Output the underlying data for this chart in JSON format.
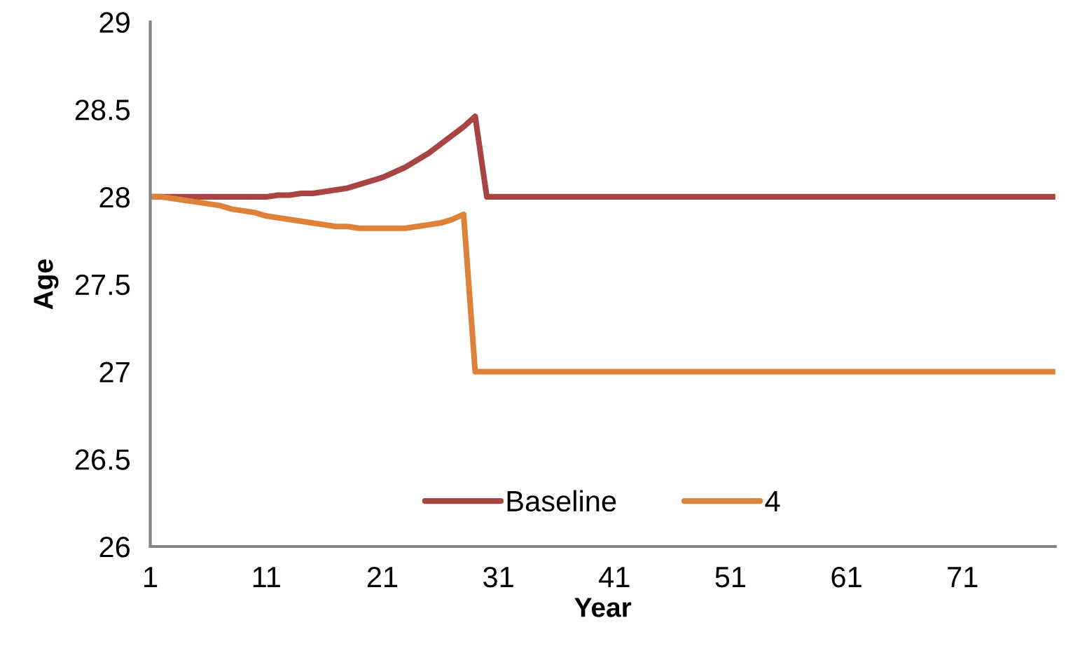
{
  "chart_data": {
    "type": "line",
    "xlabel": "Year",
    "ylabel": "Age",
    "x": [
      1,
      2,
      3,
      4,
      5,
      6,
      7,
      8,
      9,
      10,
      11,
      12,
      13,
      14,
      15,
      16,
      17,
      18,
      19,
      20,
      21,
      22,
      23,
      24,
      25,
      26,
      27,
      28,
      29,
      30,
      31,
      32,
      33,
      34,
      35,
      36,
      37,
      38,
      39,
      40,
      41,
      42,
      43,
      44,
      45,
      46,
      47,
      48,
      49,
      50,
      51,
      52,
      53,
      54,
      55,
      56,
      57,
      58,
      59,
      60,
      61,
      62,
      63,
      64,
      65,
      66,
      67,
      68,
      69,
      70,
      71,
      72,
      73,
      74,
      75,
      76,
      77,
      78,
      79
    ],
    "series": [
      {
        "name": "Baseline",
        "color": "#a84442",
        "values": [
          28,
          28,
          28,
          28,
          28,
          28,
          28,
          28,
          28,
          28,
          28,
          28.01,
          28.01,
          28.02,
          28.02,
          28.03,
          28.04,
          28.05,
          28.07,
          28.09,
          28.11,
          28.14,
          28.17,
          28.21,
          28.25,
          28.3,
          28.35,
          28.4,
          28.46,
          28,
          28,
          28,
          28,
          28,
          28,
          28,
          28,
          28,
          28,
          28,
          28,
          28,
          28,
          28,
          28,
          28,
          28,
          28,
          28,
          28,
          28,
          28,
          28,
          28,
          28,
          28,
          28,
          28,
          28,
          28,
          28,
          28,
          28,
          28,
          28,
          28,
          28,
          28,
          28,
          28,
          28,
          28,
          28,
          28,
          28,
          28,
          28,
          28,
          28
        ]
      },
      {
        "name": "4",
        "color": "#de8239",
        "values": [
          28,
          28,
          27.99,
          27.98,
          27.97,
          27.96,
          27.95,
          27.93,
          27.92,
          27.91,
          27.89,
          27.88,
          27.87,
          27.86,
          27.85,
          27.84,
          27.83,
          27.83,
          27.82,
          27.82,
          27.82,
          27.82,
          27.82,
          27.83,
          27.84,
          27.85,
          27.87,
          27.9,
          27,
          27,
          27,
          27,
          27,
          27,
          27,
          27,
          27,
          27,
          27,
          27,
          27,
          27,
          27,
          27,
          27,
          27,
          27,
          27,
          27,
          27,
          27,
          27,
          27,
          27,
          27,
          27,
          27,
          27,
          27,
          27,
          27,
          27,
          27,
          27,
          27,
          27,
          27,
          27,
          27,
          27,
          27,
          27,
          27,
          27,
          27,
          27,
          27,
          27,
          27
        ]
      }
    ],
    "xlim": [
      1,
      79
    ],
    "xticks": [
      1,
      11,
      21,
      31,
      41,
      51,
      61,
      71
    ],
    "ylim": [
      26,
      29
    ],
    "yticks": [
      26,
      26.5,
      27,
      27.5,
      28,
      28.5,
      29
    ],
    "grid": false,
    "legend": "bottom",
    "line_style": "solid"
  }
}
